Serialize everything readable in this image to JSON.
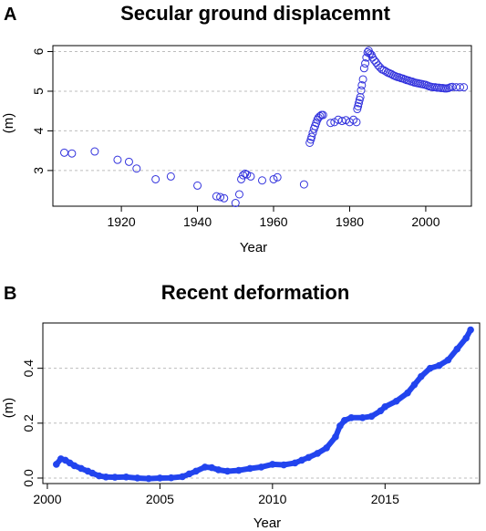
{
  "chart_data": [
    {
      "panel_label": "A",
      "type": "scatter",
      "title": "Secular ground displacemnt",
      "xlabel": "Year",
      "ylabel": "(m)",
      "xlim": [
        1902,
        2012
      ],
      "ylim": [
        2.1,
        6.15
      ],
      "xticks": [
        1920,
        1940,
        1960,
        1980,
        2000
      ],
      "yticks": [
        3,
        4,
        5,
        6
      ],
      "grid": "horizontal dashed",
      "marker": "open circle",
      "color": "#3333dd",
      "x": [
        1905,
        1907,
        1913,
        1919,
        1922,
        1924,
        1929,
        1933,
        1940,
        1945,
        1946,
        1947,
        1950,
        1951,
        1951.5,
        1952,
        1952.5,
        1953,
        1954,
        1957,
        1960,
        1961,
        1968,
        1969.5,
        1969.8,
        1970,
        1970.3,
        1970.6,
        1970.9,
        1971.2,
        1971.5,
        1971.8,
        1972.2,
        1972.6,
        1973,
        1975,
        1976,
        1977,
        1978,
        1979,
        1980,
        1981,
        1981.8,
        1982,
        1982.2,
        1982.4,
        1982.6,
        1982.8,
        1983,
        1983.2,
        1983.5,
        1983.8,
        1984.1,
        1984.4,
        1984.7,
        1985,
        1985.3,
        1985.7,
        1986,
        1986.5,
        1987,
        1987.5,
        1988,
        1988.5,
        1989,
        1989.5,
        1990,
        1990.5,
        1991,
        1991.5,
        1992,
        1992.5,
        1993,
        1993.5,
        1994,
        1994.5,
        1995,
        1995.5,
        1996,
        1996.5,
        1997,
        1997.5,
        1998,
        1998.5,
        1999,
        1999.5,
        2000,
        2000.5,
        2001,
        2001.5,
        2002,
        2002.5,
        2003,
        2003.5,
        2004,
        2004.5,
        2005,
        2005.5,
        2006,
        2006.5,
        2007,
        2008,
        2009,
        2010
      ],
      "y": [
        3.45,
        3.43,
        3.48,
        3.27,
        3.22,
        3.05,
        2.78,
        2.85,
        2.62,
        2.35,
        2.33,
        2.3,
        2.18,
        2.4,
        2.78,
        2.88,
        2.92,
        2.9,
        2.85,
        2.75,
        2.78,
        2.83,
        2.65,
        3.7,
        3.78,
        3.85,
        3.95,
        4.05,
        4.12,
        4.2,
        4.28,
        4.33,
        4.37,
        4.4,
        4.4,
        4.2,
        4.22,
        4.28,
        4.25,
        4.27,
        4.22,
        4.28,
        4.22,
        4.55,
        4.62,
        4.7,
        4.78,
        4.85,
        5.02,
        5.15,
        5.3,
        5.58,
        5.7,
        5.85,
        5.98,
        6.02,
        5.95,
        5.92,
        5.85,
        5.78,
        5.72,
        5.65,
        5.6,
        5.55,
        5.53,
        5.5,
        5.47,
        5.45,
        5.43,
        5.4,
        5.38,
        5.36,
        5.35,
        5.33,
        5.32,
        5.3,
        5.28,
        5.27,
        5.25,
        5.24,
        5.22,
        5.21,
        5.2,
        5.19,
        5.18,
        5.17,
        5.16,
        5.14,
        5.12,
        5.11,
        5.1,
        5.1,
        5.09,
        5.09,
        5.08,
        5.08,
        5.07,
        5.07,
        5.08,
        5.1,
        5.11,
        5.1,
        5.1,
        5.1
      ]
    },
    {
      "panel_label": "B",
      "type": "line",
      "title": "Recent deformation",
      "xlabel": "Year",
      "ylabel": "(m)",
      "xlim": [
        1999.8,
        2019.2
      ],
      "ylim": [
        -0.02,
        0.565
      ],
      "xticks": [
        2000,
        2005,
        2010,
        2015
      ],
      "yticks": [
        0.0,
        0.2,
        0.4
      ],
      "yticklabels": [
        "0.0",
        "0.2",
        "0.4"
      ],
      "grid": "horizontal dashed",
      "marker": "filled circle",
      "color": "#2244ee",
      "x": [
        2000.4,
        2000.6,
        2000.8,
        2001.0,
        2001.2,
        2001.5,
        2001.8,
        2002.0,
        2002.3,
        2002.6,
        2003.0,
        2003.5,
        2004.0,
        2004.5,
        2005.0,
        2005.5,
        2006.0,
        2006.3,
        2006.6,
        2007.0,
        2007.3,
        2007.6,
        2008.0,
        2008.5,
        2009.0,
        2009.5,
        2010.0,
        2010.5,
        2011.0,
        2011.3,
        2011.6,
        2012.0,
        2012.4,
        2012.8,
        2013.0,
        2013.2,
        2013.5,
        2014.0,
        2014.4,
        2014.8,
        2015.0,
        2015.5,
        2016.0,
        2016.3,
        2016.6,
        2017.0,
        2017.4,
        2017.8,
        2018.2,
        2018.6,
        2018.8
      ],
      "y": [
        0.05,
        0.07,
        0.065,
        0.055,
        0.045,
        0.035,
        0.025,
        0.018,
        0.008,
        0.004,
        0.003,
        0.004,
        0.0,
        -0.002,
        0.0,
        0.001,
        0.005,
        0.015,
        0.025,
        0.04,
        0.038,
        0.03,
        0.025,
        0.028,
        0.035,
        0.04,
        0.05,
        0.048,
        0.055,
        0.065,
        0.075,
        0.09,
        0.11,
        0.15,
        0.19,
        0.21,
        0.22,
        0.22,
        0.225,
        0.245,
        0.26,
        0.28,
        0.31,
        0.34,
        0.37,
        0.4,
        0.41,
        0.43,
        0.47,
        0.51,
        0.54
      ]
    }
  ]
}
